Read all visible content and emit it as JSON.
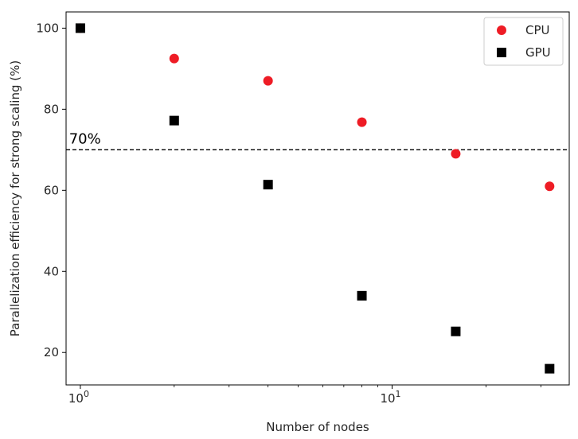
{
  "chart_data": {
    "type": "scatter",
    "xscale": "log",
    "xlim": [
      0.9,
      37
    ],
    "ylim": [
      12,
      104
    ],
    "xlabel": "Number of nodes",
    "ylabel": "Parallelization efficiency for strong scaling (%)",
    "yticks": [
      20,
      40,
      60,
      80,
      100
    ],
    "xticks": [
      {
        "value": 1,
        "base": "10",
        "exp": "0"
      },
      {
        "value": 10,
        "base": "10",
        "exp": "1"
      }
    ],
    "grid": false,
    "legend_position": "top-right",
    "series": [
      {
        "name": "CPU",
        "marker": "circle",
        "color": "#ee1c25",
        "x": [
          1,
          2,
          4,
          8,
          16,
          32
        ],
        "y": [
          100,
          92.5,
          87,
          76.8,
          69,
          61
        ]
      },
      {
        "name": "GPU",
        "marker": "square",
        "color": "#000000",
        "x": [
          1,
          2,
          4,
          8,
          16,
          32
        ],
        "y": [
          100,
          77.2,
          61.4,
          34,
          25.2,
          16
        ]
      }
    ],
    "reference_line": {
      "y": 70,
      "style": "dashed",
      "color": "#000000"
    },
    "annotations": [
      {
        "text": "70%",
        "x": 0.92,
        "y": 71.5
      }
    ]
  }
}
